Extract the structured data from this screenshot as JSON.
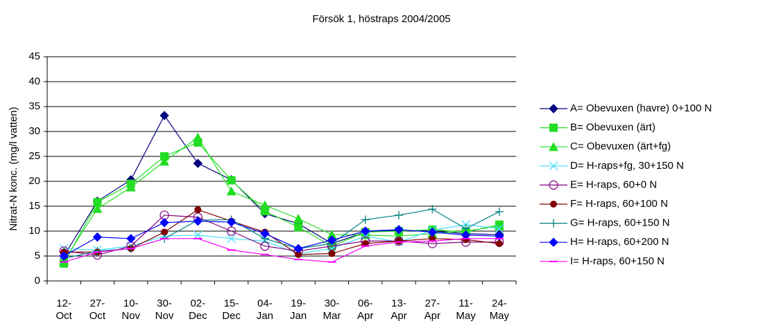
{
  "chart_data": {
    "type": "line",
    "title": "Försök 1, höstraps 2004/2005",
    "y_label": "Nitrat-N konc. (mg/l vatten)",
    "categories": [
      "12- Oct",
      "27- Oct",
      "10- Nov",
      "30- Nov",
      "02- Dec",
      "15- Dec",
      "04- Jan",
      "19- Jan",
      "30- Mar",
      "06- Apr",
      "13- Apr",
      "27- Apr",
      "11- May",
      "24- May"
    ],
    "ylim": [
      0,
      45
    ],
    "yticks": [
      0,
      5,
      10,
      15,
      20,
      25,
      30,
      35,
      40,
      45
    ],
    "grid": true,
    "legend": "right",
    "series": [
      {
        "name": "A= Obevuxen (havre) 0+100 N",
        "color": "#000080",
        "marker": "diamond",
        "values": [
          5,
          16,
          20.3,
          33.2,
          23.6,
          20.3,
          13.5,
          11.5,
          7.5,
          9.8,
          10.2,
          10,
          9.5,
          9.3
        ]
      },
      {
        "name": "B= Obevuxen (ärt)",
        "color": "#22dd22",
        "marker": "square",
        "values": [
          3.5,
          15.8,
          19.5,
          25,
          27.8,
          20.2,
          14,
          10.8,
          7,
          9.8,
          10,
          10.3,
          9.8,
          11.3
        ]
      },
      {
        "name": "C= Obevuxen (ärt+fg)",
        "color": "#22dd22",
        "marker": "triangle",
        "values": [
          4,
          14.5,
          18.8,
          24,
          28.8,
          18,
          15.2,
          12.5,
          9.3,
          9.2,
          9,
          9.5,
          10,
          11
        ]
      },
      {
        "name": "D= H-raps+fg, 30+150 N",
        "color": "#44ddff",
        "marker": "x",
        "values": [
          6.5,
          6.2,
          7,
          9,
          9.2,
          8.5,
          8,
          5.5,
          6.5,
          9,
          7.8,
          10.2,
          11.3,
          10.5
        ]
      },
      {
        "name": "E= H-raps, 60+0 N",
        "color": "#800080",
        "marker": "open-circle",
        "values": [
          6,
          5.2,
          7,
          13.2,
          12.8,
          10,
          7,
          6,
          7,
          8,
          8,
          7.5,
          7.8,
          7.8
        ]
      },
      {
        "name": "F= H-raps, 60+100 N",
        "color": "#800000",
        "marker": "circle",
        "values": [
          5.8,
          5.8,
          6.5,
          9.8,
          14.3,
          12,
          9.8,
          5.3,
          5.5,
          7.5,
          8,
          8.5,
          8.3,
          7.5
        ]
      },
      {
        "name": "G= H-raps, 60+150 N",
        "color": "#008080",
        "marker": "plus",
        "values": [
          4.5,
          6,
          6.5,
          8.5,
          12.2,
          12.3,
          8.5,
          6.5,
          7.5,
          12.3,
          13.2,
          14.4,
          10.5,
          13.9
        ]
      },
      {
        "name": "H= H-raps, 60+200 N",
        "color": "#0000ff",
        "marker": "diamond",
        "values": [
          5,
          8.8,
          8.5,
          11.7,
          12,
          11.8,
          9.5,
          6.5,
          8.2,
          10,
          10.3,
          9.8,
          9.2,
          9
        ]
      },
      {
        "name": "I= H-raps, 60+150 N",
        "color": "#ff00ff",
        "marker": "dash",
        "values": [
          3.8,
          5.8,
          6.5,
          8.5,
          8.5,
          6.2,
          5.3,
          4.3,
          3.8,
          7,
          7.8,
          8,
          8.5,
          8.5
        ]
      }
    ]
  }
}
